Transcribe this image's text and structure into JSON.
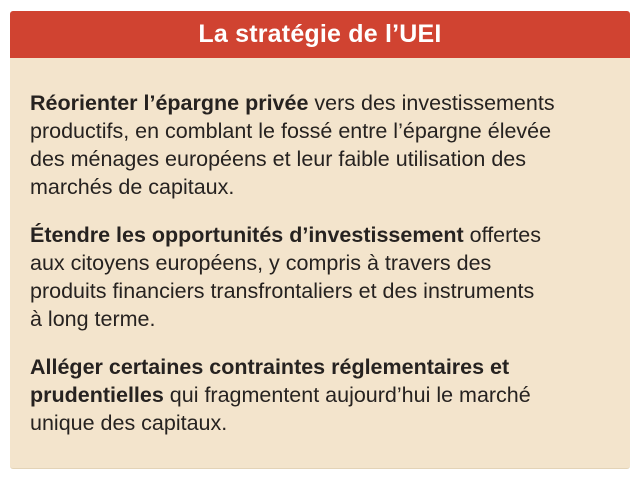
{
  "infobox": {
    "title": "La stratégie de l’UEI",
    "colors": {
      "accent_red": "#d04331",
      "panel_cream": "#f3e4cc",
      "body_text": "#262220",
      "title_text": "#ffffff",
      "page_background": "#ffffff"
    },
    "paragraphs": [
      {
        "lines": [
          {
            "bold": "Réorienter l’épargne privée",
            "rest": " vers des investissements"
          },
          {
            "bold": "",
            "rest": "productifs, en comblant le fossé entre l’épargne élevée"
          },
          {
            "bold": "",
            "rest": "des ménages européens et leur faible utilisation des"
          },
          {
            "bold": "",
            "rest": "marchés de capitaux."
          }
        ]
      },
      {
        "lines": [
          {
            "bold": "Étendre les opportunités d’investissement",
            "rest": " offertes"
          },
          {
            "bold": "",
            "rest": "aux citoyens européens, y compris à travers des"
          },
          {
            "bold": "",
            "rest": "produits financiers transfrontaliers et des instruments"
          },
          {
            "bold": "",
            "rest": "à long terme."
          }
        ]
      },
      {
        "lines": [
          {
            "bold": "Alléger certaines contraintes réglementaires et",
            "rest": ""
          },
          {
            "bold": "prudentielles",
            "rest": " qui fragmentent aujourd’hui le marché"
          },
          {
            "bold": "",
            "rest": "unique des capitaux."
          }
        ]
      }
    ]
  }
}
